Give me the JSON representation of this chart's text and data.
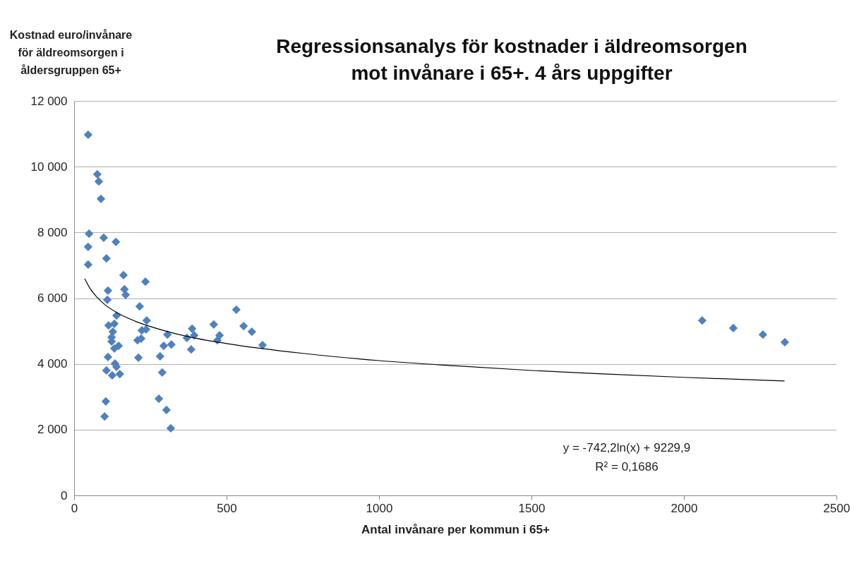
{
  "chart_data": {
    "type": "scatter",
    "title": "Regressionsanalys för kostnader i äldreomsorgen\nmot invånare i 65+. 4 års uppgifter",
    "xlabel": "Antal invånare per kommun  i  65+",
    "ylabel": "Kostnad euro/invånare\nför äldreomsorgen  i\nåldersgruppen  65+",
    "xlim": [
      0,
      2500
    ],
    "xticks": [
      0,
      500,
      1000,
      1500,
      2000,
      2500
    ],
    "ylim": [
      0,
      12000
    ],
    "yticks": [
      {
        "value": 0,
        "label": "0"
      },
      {
        "value": 2000,
        "label": "2 000"
      },
      {
        "value": 4000,
        "label": "4 000"
      },
      {
        "value": 6000,
        "label": "6 000"
      },
      {
        "value": 8000,
        "label": "8 000"
      },
      {
        "value": 10000,
        "label": "10 000"
      },
      {
        "value": 12000,
        "label": "12 000"
      }
    ],
    "grid": "y",
    "series": [
      {
        "marker": "diamond",
        "color": "#4f81bd",
        "x": [
          46,
          76,
          81,
          88,
          49,
          97,
          137,
          46,
          106,
          46,
          162,
          234,
          165,
          169,
          111,
          109,
          215,
          532,
          139,
          132,
          113,
          238,
          458,
          556,
          387,
          222,
          583,
          127,
          236,
          123,
          477,
          394,
          370,
          306,
          220,
          208,
          470,
          123,
          319,
          294,
          618,
          132,
          146,
          384,
          111,
          211,
          282,
          134,
          139,
          106,
          125,
          150,
          289,
          278,
          104,
          303,
          100,
          317,
          2060,
          2162,
          2259,
          2331
        ],
        "values": [
          10970,
          9770,
          9550,
          9020,
          7960,
          7840,
          7710,
          7560,
          7210,
          7020,
          6700,
          6500,
          6270,
          6100,
          6230,
          5950,
          5750,
          5650,
          5470,
          5220,
          5170,
          5320,
          5200,
          5150,
          5070,
          5020,
          4980,
          4980,
          5050,
          4810,
          4870,
          4870,
          4790,
          4890,
          4770,
          4720,
          4720,
          4680,
          4590,
          4550,
          4570,
          4470,
          4550,
          4440,
          4210,
          4190,
          4230,
          4010,
          3910,
          3800,
          3650,
          3690,
          3740,
          2940,
          2860,
          2600,
          2400,
          2040,
          5320,
          5090,
          4890,
          4660
        ]
      },
      {
        "type": "line",
        "marker": "none",
        "color": "#000000",
        "x": [
          35,
          50,
          75,
          100,
          150,
          200,
          300,
          400,
          500,
          750,
          1000,
          1250,
          1500,
          1750,
          2000,
          2330
        ],
        "values": [
          6590,
          6330,
          6030,
          5810,
          5510,
          5300,
          5000,
          4780,
          4620,
          4320,
          4100,
          3940,
          3800,
          3690,
          3590,
          3480
        ]
      }
    ],
    "annotations": [
      "y = -742,2ln(x) + 9229,9",
      "R² = 0,1686"
    ]
  }
}
